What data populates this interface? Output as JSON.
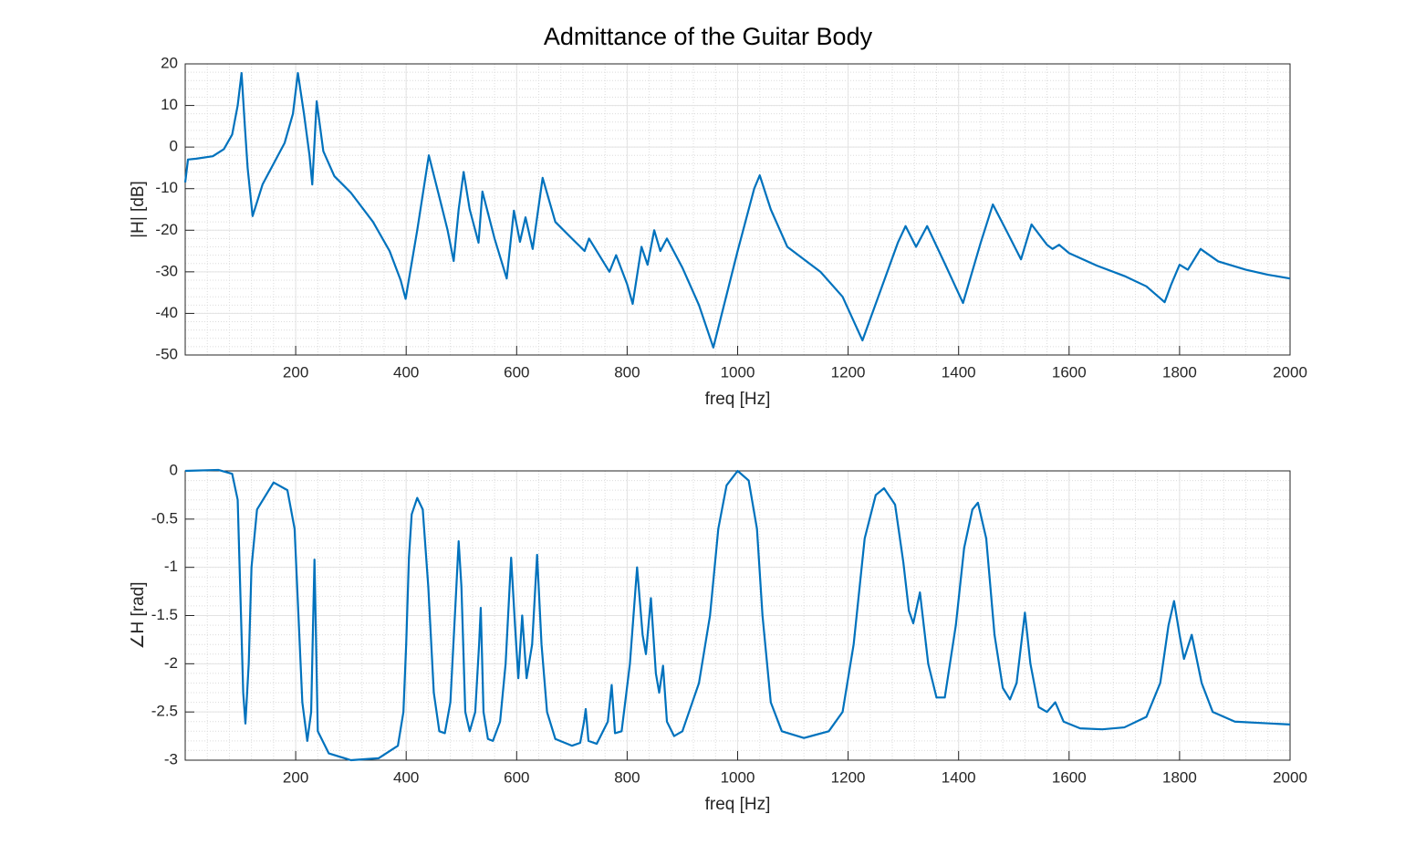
{
  "chart_data": [
    {
      "type": "line",
      "title": "Admittance of the Guitar Body",
      "x_label": "freq [Hz]",
      "y_label": "|H| [dB]",
      "x": [
        0,
        5,
        20,
        50,
        70,
        85,
        95,
        102,
        108,
        113,
        122,
        140,
        160,
        180,
        195,
        204,
        215,
        225,
        230,
        238,
        250,
        270,
        300,
        340,
        370,
        390,
        399,
        420,
        441,
        460,
        475,
        486,
        495,
        504,
        515,
        531,
        538,
        560,
        582,
        595,
        606,
        616,
        629,
        647,
        670,
        700,
        723,
        731,
        768,
        780,
        800,
        810,
        826,
        837,
        849,
        860,
        872,
        900,
        930,
        956,
        1000,
        1030,
        1040,
        1060,
        1090,
        1150,
        1190,
        1226,
        1260,
        1290,
        1304,
        1323,
        1343,
        1375,
        1408,
        1440,
        1462,
        1490,
        1513,
        1532,
        1560,
        1570,
        1582,
        1600,
        1650,
        1700,
        1740,
        1773,
        1785,
        1800,
        1815,
        1838,
        1870,
        1920,
        1960,
        2000
      ],
      "values": [
        -8.5,
        -3,
        -2.8,
        -2.2,
        -0.5,
        3,
        10,
        17.8,
        5,
        -5,
        -16.6,
        -9,
        -4,
        1,
        8,
        17.8,
        8,
        -2,
        -9,
        11,
        -1,
        -7,
        -11,
        -18,
        -25,
        -32,
        -36.5,
        -20,
        -2,
        -12,
        -20,
        -27.4,
        -15,
        -6,
        -15,
        -23,
        -10.7,
        -22,
        -31.6,
        -15.3,
        -22.8,
        -16.9,
        -24.5,
        -7.4,
        -18,
        -22,
        -25,
        -22,
        -30,
        -26,
        -33,
        -37.7,
        -24,
        -28.3,
        -20,
        -25,
        -22,
        -29,
        -38,
        -48.2,
        -25,
        -10,
        -6.8,
        -15,
        -24,
        -30,
        -36,
        -46.5,
        -34,
        -23,
        -19,
        -24,
        -19,
        -28,
        -37.5,
        -23,
        -13.8,
        -21,
        -27,
        -18.6,
        -23.5,
        -24.5,
        -23.5,
        -25.5,
        -28.5,
        -31,
        -33.5,
        -37.3,
        -33,
        -28.3,
        -29.5,
        -24.5,
        -27.5,
        -29.5,
        -30.7,
        -31.6
      ],
      "color": "#0072bd",
      "xlim": [
        0,
        2000
      ],
      "ylim": [
        -50,
        20
      ],
      "xticks": [
        200,
        400,
        600,
        800,
        1000,
        1200,
        1400,
        1600,
        1800,
        2000
      ],
      "yticks": [
        -50,
        -40,
        -30,
        -20,
        -10,
        0,
        10,
        20
      ],
      "grid": true,
      "minor_grid": true
    },
    {
      "type": "line",
      "x_label": "freq [Hz]",
      "y_label": "∠H [rad]",
      "x": [
        0,
        60,
        85,
        95,
        100,
        105,
        109,
        115,
        120,
        130,
        160,
        185,
        198,
        205,
        212,
        221,
        228,
        234,
        240,
        260,
        300,
        350,
        385,
        395,
        400,
        405,
        410,
        420,
        430,
        440,
        450,
        460,
        470,
        480,
        490,
        495,
        500,
        507,
        515,
        525,
        532,
        535,
        540,
        548,
        557,
        570,
        580,
        590,
        597,
        603,
        610,
        618,
        628,
        637,
        645,
        655,
        670,
        700,
        715,
        722,
        725,
        730,
        745,
        765,
        772,
        778,
        790,
        805,
        818,
        828,
        834,
        843,
        852,
        858,
        865,
        872,
        885,
        900,
        930,
        950,
        965,
        980,
        1000,
        1020,
        1035,
        1045,
        1060,
        1080,
        1120,
        1165,
        1190,
        1210,
        1230,
        1250,
        1265,
        1285,
        1300,
        1310,
        1318,
        1330,
        1345,
        1360,
        1375,
        1395,
        1410,
        1425,
        1435,
        1450,
        1465,
        1480,
        1493,
        1505,
        1520,
        1530,
        1545,
        1560,
        1575,
        1590,
        1620,
        1660,
        1700,
        1740,
        1765,
        1780,
        1790,
        1800,
        1808,
        1822,
        1840,
        1860,
        1900,
        2000
      ],
      "values": [
        0,
        0.01,
        -0.03,
        -0.3,
        -1.3,
        -2.3,
        -2.62,
        -2,
        -1,
        -0.4,
        -0.12,
        -0.2,
        -0.6,
        -1.5,
        -2.4,
        -2.8,
        -2.5,
        -0.92,
        -2.7,
        -2.93,
        -3,
        -2.98,
        -2.85,
        -2.5,
        -1.8,
        -0.9,
        -0.45,
        -0.28,
        -0.4,
        -1.2,
        -2.3,
        -2.7,
        -2.72,
        -2.4,
        -1.3,
        -0.73,
        -1.2,
        -2.5,
        -2.7,
        -2.5,
        -1.8,
        -1.42,
        -2.5,
        -2.78,
        -2.8,
        -2.6,
        -2,
        -0.9,
        -1.6,
        -2.15,
        -1.5,
        -2.15,
        -1.8,
        -0.87,
        -1.8,
        -2.5,
        -2.78,
        -2.85,
        -2.82,
        -2.6,
        -2.47,
        -2.8,
        -2.83,
        -2.6,
        -2.22,
        -2.72,
        -2.7,
        -2,
        -1,
        -1.7,
        -1.9,
        -1.32,
        -2.1,
        -2.3,
        -2.02,
        -2.6,
        -2.75,
        -2.7,
        -2.2,
        -1.5,
        -0.6,
        -0.15,
        0,
        -0.1,
        -0.6,
        -1.5,
        -2.4,
        -2.7,
        -2.77,
        -2.7,
        -2.5,
        -1.8,
        -0.7,
        -0.25,
        -0.18,
        -0.35,
        -0.95,
        -1.45,
        -1.58,
        -1.26,
        -2,
        -2.35,
        -2.35,
        -1.6,
        -0.8,
        -0.4,
        -0.33,
        -0.7,
        -1.7,
        -2.25,
        -2.37,
        -2.2,
        -1.47,
        -2,
        -2.45,
        -2.5,
        -2.4,
        -2.6,
        -2.67,
        -2.68,
        -2.66,
        -2.55,
        -2.2,
        -1.6,
        -1.35,
        -1.7,
        -1.95,
        -1.7,
        -2.2,
        -2.5,
        -2.6,
        -2.63
      ],
      "color": "#0072bd",
      "xlim": [
        0,
        2000
      ],
      "ylim": [
        -3,
        0
      ],
      "xticks": [
        200,
        400,
        600,
        800,
        1000,
        1200,
        1400,
        1600,
        1800,
        2000
      ],
      "yticks": [
        -3,
        -2.5,
        -2,
        -1.5,
        -1,
        -0.5,
        0
      ],
      "grid": true,
      "minor_grid": true
    }
  ]
}
